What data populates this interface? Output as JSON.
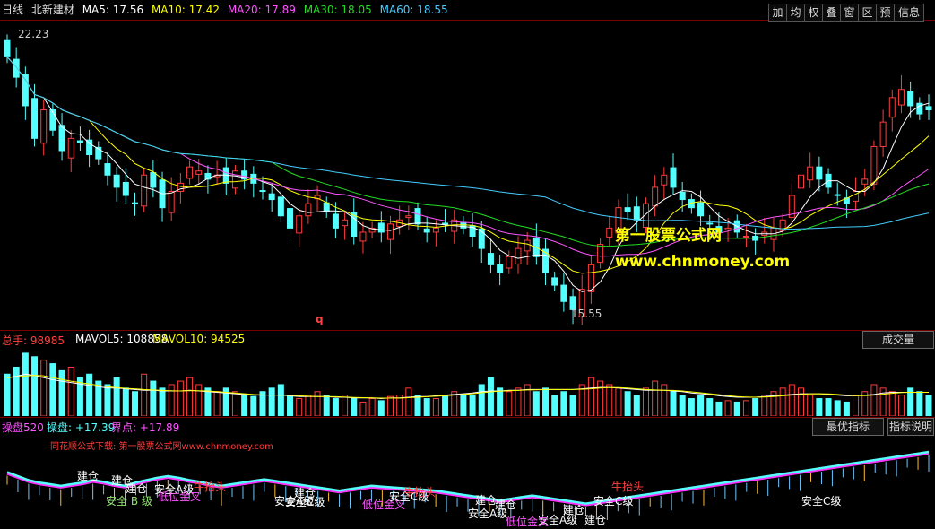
{
  "top_bar": {
    "period": "日线",
    "stock_name": "北新建材",
    "ma5": "MA5: 17.56",
    "ma10": "MA10: 17.42",
    "ma20": "MA20: 17.89",
    "ma30": "MA30: 18.05",
    "ma60": "MA60: 18.55"
  },
  "toolbar": [
    "加",
    "均",
    "权",
    "叠",
    "窗",
    "区",
    "预",
    "信息"
  ],
  "price_panel": {
    "high_label": "22.23",
    "low_label": "15.55",
    "watermark_line1": "第一股票公式网",
    "watermark_line2": "www.chnmoney.com",
    "marker": "q"
  },
  "volume_panel": {
    "total": "总手: 98985",
    "mavol5": "MAVOL5: 108858",
    "mavol10": "MAVOL10: 94525",
    "button": "成交量"
  },
  "indicator_panel": {
    "name": "操盘520",
    "caopan": "操盘: +17.39",
    "jiedian": "界点: +17.89",
    "button1": "最优指标",
    "button2": "指标说明",
    "source_note": "同花顺公式下载: 第一股票公式网www.chnmoney.com",
    "annotations": [
      "建仓",
      "建仓",
      "建仓",
      "安全 B 级",
      "安全A级",
      "低位金叉",
      "牛抬头",
      "安全A级",
      "建仓",
      "安全C级",
      "低位金叉",
      "安全C级",
      "牛抬头",
      "建仓",
      "建仓",
      "安全A级",
      "建仓",
      "安全A级",
      "低位金叉",
      "建仓",
      "安全C级",
      "牛抬头",
      "安全C级"
    ]
  },
  "colors": {
    "up": "#ff3b3b",
    "down": "#54ffff",
    "ma5": "#ffffff",
    "ma10": "#ffff00",
    "ma20": "#ff55ff",
    "ma30": "#22dd22",
    "ma60": "#44ccff",
    "text_red": "#ff4040"
  },
  "chart_data": {
    "type": "candlestick",
    "price_range": [
      15.3,
      22.6
    ],
    "closes": [
      21.8,
      21.3,
      20.6,
      19.8,
      20.5,
      20.0,
      19.5,
      19.8,
      19.7,
      19.4,
      19.3,
      18.9,
      18.6,
      18.4,
      18.2,
      18.9,
      18.6,
      18.1,
      18.5,
      18.7,
      19.1,
      19.0,
      18.8,
      18.9,
      18.7,
      19.0,
      18.8,
      18.7,
      18.5,
      18.3,
      17.9,
      17.6,
      17.9,
      18.2,
      18.4,
      18.0,
      17.6,
      17.8,
      17.4,
      17.5,
      17.6,
      17.5,
      17.7,
      17.8,
      17.9,
      17.7,
      17.5,
      17.6,
      17.7,
      17.8,
      17.6,
      17.4,
      17.1,
      16.7,
      16.5,
      16.9,
      17.1,
      17.3,
      16.9,
      16.5,
      16.2,
      15.8,
      15.6,
      16.1,
      16.7,
      17.2,
      17.6,
      18.1,
      18.0,
      17.8,
      18.2,
      18.6,
      18.9,
      18.6,
      18.3,
      18.1,
      17.9,
      17.7,
      17.5,
      17.6,
      17.5,
      17.4,
      17.3,
      17.5,
      17.6,
      17.8,
      18.4,
      18.9,
      19.1,
      18.8,
      18.6,
      18.4,
      18.2,
      18.5,
      18.8,
      19.6,
      20.2,
      20.8,
      21.0,
      20.6,
      20.4,
      20.5
    ],
    "volumes": [
      60,
      70,
      90,
      85,
      80,
      75,
      65,
      70,
      55,
      60,
      50,
      45,
      55,
      40,
      35,
      60,
      50,
      40,
      45,
      50,
      55,
      45,
      40,
      35,
      40,
      35,
      30,
      28,
      35,
      40,
      45,
      30,
      25,
      30,
      35,
      30,
      25,
      30,
      25,
      20,
      25,
      22,
      28,
      30,
      40,
      30,
      25,
      25,
      30,
      35,
      30,
      30,
      45,
      55,
      40,
      35,
      40,
      45,
      35,
      40,
      30,
      35,
      30,
      45,
      55,
      50,
      45,
      40,
      35,
      30,
      40,
      50,
      45,
      35,
      30,
      25,
      30,
      25,
      20,
      22,
      20,
      22,
      25,
      30,
      35,
      40,
      45,
      40,
      30,
      25,
      25,
      22,
      20,
      30,
      35,
      45,
      40,
      35,
      30,
      40,
      35,
      30
    ],
    "mavol": [
      55,
      57,
      60,
      58,
      55,
      52,
      50,
      48,
      46,
      44,
      42,
      40,
      40,
      39,
      38,
      37,
      37,
      36,
      36,
      36,
      37,
      36,
      35,
      34,
      33,
      32,
      31,
      30,
      30,
      30,
      30,
      29,
      28,
      28,
      28,
      28,
      27,
      27,
      26,
      26,
      26,
      25,
      26,
      26,
      27,
      28,
      28,
      29,
      30,
      31,
      32,
      33,
      35,
      36,
      36,
      37,
      37,
      38,
      38,
      38,
      38,
      38,
      38,
      39,
      40,
      41,
      41,
      40,
      39,
      38,
      37,
      37,
      37,
      36,
      35,
      33,
      32,
      31,
      29,
      28,
      27,
      27,
      27,
      28,
      29,
      30,
      31,
      32,
      32,
      32,
      31,
      30,
      29,
      29,
      30,
      31,
      33,
      34,
      34,
      34,
      34,
      34
    ],
    "indicator": [
      0.45,
      0.4,
      0.35,
      0.32,
      0.3,
      0.28,
      0.3,
      0.32,
      0.35,
      0.33,
      0.3,
      0.28,
      0.32,
      0.35,
      0.38,
      0.4,
      0.38,
      0.35,
      0.33,
      0.3,
      0.28,
      0.3,
      0.32,
      0.34,
      0.36,
      0.34,
      0.32,
      0.3,
      0.28,
      0.26,
      0.24,
      0.22,
      0.24,
      0.26,
      0.28,
      0.27,
      0.26,
      0.25,
      0.24,
      0.23,
      0.22,
      0.2,
      0.18,
      0.16,
      0.14,
      0.12,
      0.1,
      0.12,
      0.14,
      0.16,
      0.14,
      0.12,
      0.1,
      0.08,
      0.06,
      0.08,
      0.1,
      0.12,
      0.14,
      0.16,
      0.18,
      0.2,
      0.22,
      0.24,
      0.26,
      0.28,
      0.3,
      0.32,
      0.34,
      0.36,
      0.38,
      0.4,
      0.42,
      0.44,
      0.46,
      0.48,
      0.5,
      0.52,
      0.54,
      0.56,
      0.58,
      0.6,
      0.62,
      0.64,
      0.66,
      0.68,
      0.7
    ]
  }
}
